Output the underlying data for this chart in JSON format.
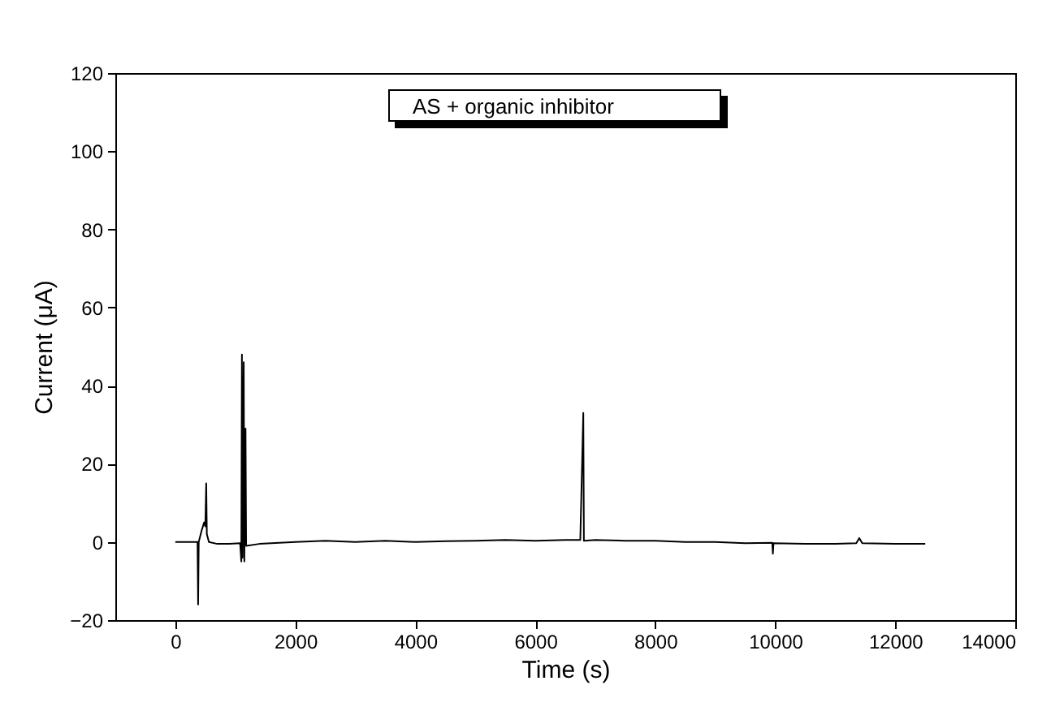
{
  "chart_data": {
    "type": "line",
    "xlabel": "Time (s)",
    "ylabel": "Current (μA)",
    "annotations": [
      "AS + organic inhibitor"
    ],
    "x": [
      0,
      300,
      370,
      380,
      390,
      440,
      480,
      500,
      515,
      525,
      560,
      700,
      900,
      1080,
      1100,
      1110,
      1120,
      1140,
      1150,
      1170,
      1180,
      1400,
      2000,
      2500,
      3000,
      3500,
      4000,
      4500,
      5000,
      5500,
      6000,
      6500,
      6750,
      6800,
      6810,
      7000,
      7500,
      8000,
      8500,
      9000,
      9500,
      9950,
      9960,
      9970,
      10500,
      11000,
      11350,
      11400,
      11450,
      12000,
      12500
    ],
    "series": [
      {
        "color": "#000000",
        "values": [
          0,
          0,
          0,
          -16,
          0,
          3,
          5,
          4,
          15,
          2,
          0,
          -0.5,
          -0.5,
          -0.3,
          -5,
          48,
          -4,
          46,
          -5,
          29,
          -1,
          -0.5,
          0,
          0.3,
          0,
          0.3,
          0,
          0.2,
          0.3,
          0.5,
          0.3,
          0.5,
          0.5,
          33,
          0.3,
          0.5,
          0.3,
          0.3,
          0,
          0,
          -0.3,
          -0.2,
          -3,
          -0.3,
          -0.5,
          -0.5,
          -0.3,
          1,
          -0.3,
          -0.5,
          -0.5
        ]
      }
    ],
    "xlim": [
      -1000,
      14000
    ],
    "ylim": [
      -20,
      120
    ],
    "xticks": [
      0,
      2000,
      4000,
      6000,
      8000,
      10000,
      12000,
      14000
    ],
    "yticks": [
      -20,
      0,
      20,
      40,
      60,
      80,
      100,
      120
    ],
    "grid": false,
    "marker": "none",
    "line_style": "solid"
  }
}
